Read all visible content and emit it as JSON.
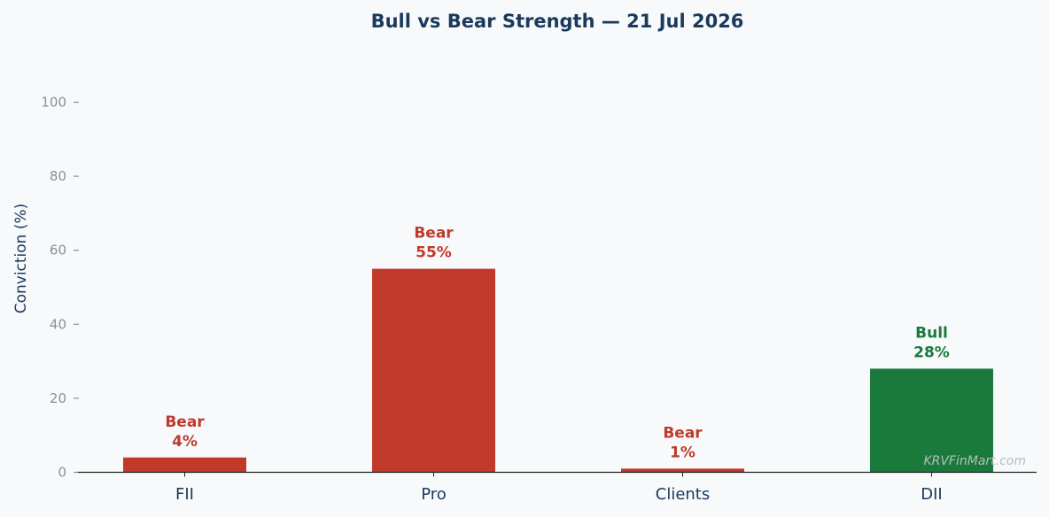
{
  "chart_data": {
    "type": "bar",
    "title": "Bull vs Bear Strength — 21 Jul 2026",
    "xlabel": "",
    "ylabel": "Conviction (%)",
    "ylim": [
      0,
      110
    ],
    "yticks": [
      0,
      20,
      40,
      60,
      80,
      100
    ],
    "categories": [
      "FII",
      "Pro",
      "Clients",
      "DII"
    ],
    "values": [
      4,
      55,
      1,
      28
    ],
    "bar_labels": [
      {
        "side": "Bear",
        "value": "4%"
      },
      {
        "side": "Bear",
        "value": "55%"
      },
      {
        "side": "Bear",
        "value": "1%"
      },
      {
        "side": "Bull",
        "value": "28%"
      }
    ],
    "grid": false,
    "legend": "none"
  },
  "watermark": "KRVFinMart.com",
  "colors": {
    "bear": "#c0392b",
    "bull": "#1a7a3c",
    "title": "#1a3a5c",
    "tick": "#8a8f95",
    "axis": "#222222",
    "background": "#f7f9fb"
  }
}
